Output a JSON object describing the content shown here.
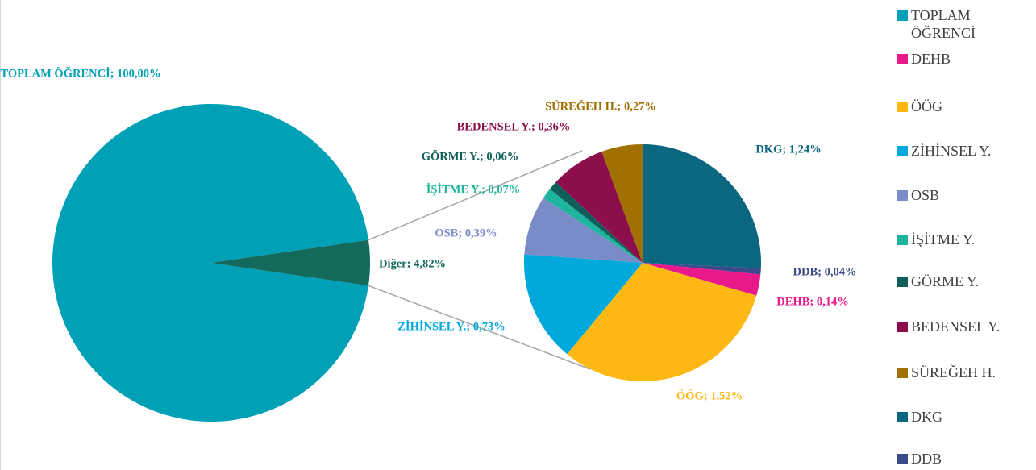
{
  "chart_data": {
    "type": "pie_of_pie",
    "categories": [
      "TOPLAM ÖĞRENCİ",
      "DEHB",
      "ÖÖG",
      "ZİHİNSEL Y.",
      "OSB",
      "İŞİTME Y.",
      "GÖRME Y.",
      "BEDENSEL Y.",
      "SÜREĞEH H.",
      "DKG",
      "DDB"
    ],
    "values": [
      100,
      0.14,
      1.52,
      0.73,
      0.39,
      0.07,
      0.06,
      0.36,
      0.27,
      1.24,
      0.04
    ],
    "value_labels": [
      "TOPLAM ÖĞRENCİ; 100,00%",
      "DEHB; 0,14%",
      "ÖÖG; 1,52%",
      "ZİHİNSEL Y.; 0,73%",
      "OSB; 0,39%",
      "İŞİTME Y.; 0,07%",
      "GÖRME Y.; 0,06%",
      "BEDENSEL Y.; 0,36%",
      "SÜREĞEH H.; 0,27%",
      "DKG; 1,24%",
      "DDB; 0,04%"
    ],
    "colors": [
      "#00a0b7",
      "#e8198b",
      "#fdb813",
      "#00a9dc",
      "#7a8cc8",
      "#1db59e",
      "#0e5e5a",
      "#8c0f4b",
      "#a07000",
      "#0b6680",
      "#3b4a8a"
    ],
    "other": {
      "name": "Diğer",
      "value": 4.82,
      "value_label": "Diğer; 4,82%",
      "color": "#13695a"
    },
    "legend": "right"
  }
}
